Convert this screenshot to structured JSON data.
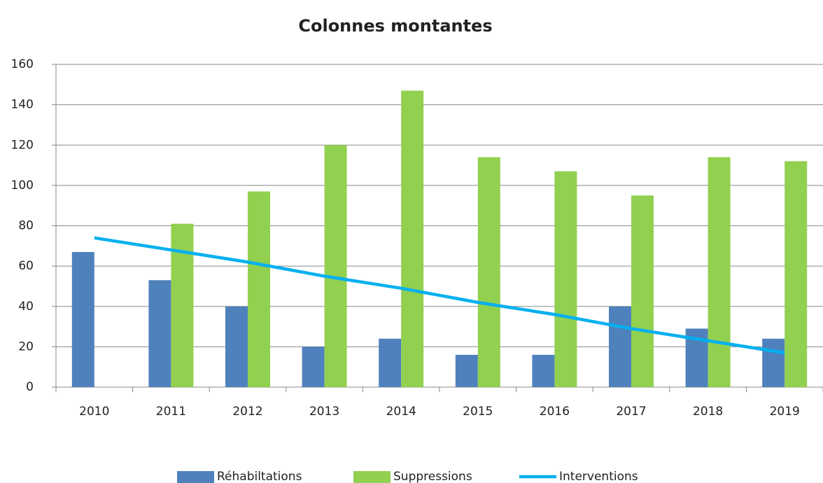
{
  "chart_data": {
    "type": "bar_line",
    "title": "Colonnes montantes",
    "categories": [
      "2010",
      "2011",
      "2012",
      "2013",
      "2014",
      "2015",
      "2016",
      "2017",
      "2018",
      "2019"
    ],
    "series": [
      {
        "name": "Réhabiltations",
        "color": "#4f81bd",
        "kind": "bar",
        "values": [
          67,
          53,
          40,
          20,
          24,
          16,
          16,
          40,
          29,
          24
        ]
      },
      {
        "name": "Suppressions",
        "color": "#92d050",
        "kind": "bar",
        "values": [
          null,
          81,
          97,
          120,
          147,
          114,
          107,
          95,
          114,
          112
        ]
      },
      {
        "name": "Interventions",
        "color": "#00b0f0",
        "kind": "line",
        "values": [
          74,
          68,
          62,
          55,
          49,
          42,
          36,
          29,
          23,
          17
        ]
      }
    ],
    "ylim": [
      0,
      160
    ],
    "yticks": [
      0,
      20,
      40,
      60,
      80,
      100,
      120,
      140,
      160
    ],
    "grid": true,
    "legend": "bottom"
  }
}
